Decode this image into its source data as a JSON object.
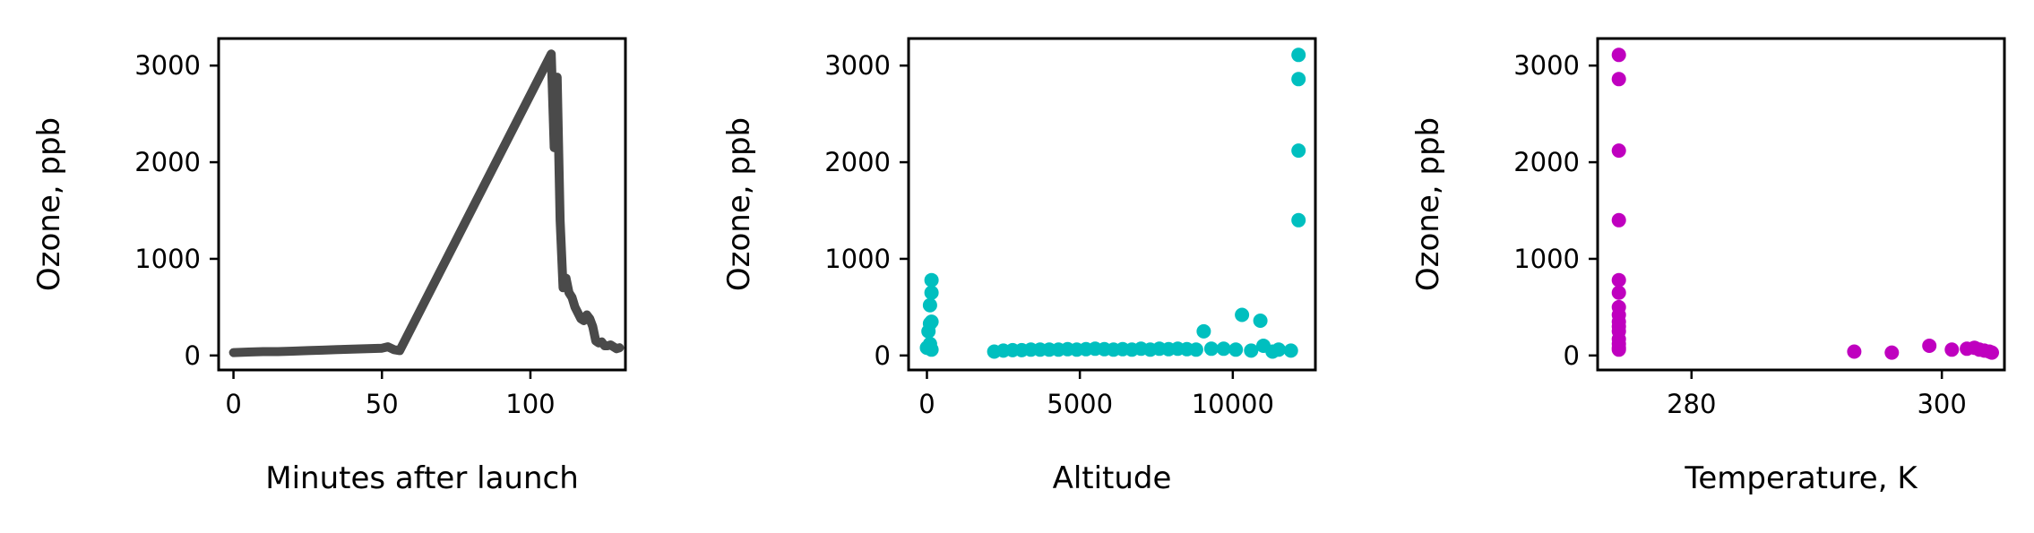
{
  "chart_data": [
    {
      "type": "line",
      "xlabel": "Minutes after launch",
      "ylabel": "Ozone, ppb",
      "xlim": [
        -5,
        132
      ],
      "ylim": [
        -150,
        3280
      ],
      "xticks": [
        0,
        50,
        100
      ],
      "yticks": [
        0,
        1000,
        2000,
        3000
      ],
      "color": "#4a4a4a",
      "grid": false,
      "series": [
        {
          "x": [
            0,
            5,
            10,
            15,
            20,
            25,
            30,
            35,
            40,
            45,
            50,
            52,
            54,
            56,
            107,
            108,
            109,
            110,
            111,
            112,
            113,
            114,
            115,
            117,
            118,
            119,
            120,
            121,
            122,
            123,
            124,
            125,
            126,
            127,
            128,
            129,
            130
          ],
          "y": [
            30,
            35,
            40,
            40,
            45,
            50,
            55,
            60,
            65,
            70,
            75,
            90,
            60,
            50,
            3120,
            2150,
            2880,
            1400,
            700,
            800,
            650,
            600,
            500,
            380,
            360,
            420,
            380,
            300,
            150,
            130,
            140,
            100,
            100,
            110,
            90,
            70,
            80
          ]
        }
      ]
    },
    {
      "type": "scatter",
      "xlabel": "Altitude",
      "ylabel": "Ozone, ppb",
      "xlim": [
        -600,
        12700
      ],
      "ylim": [
        -150,
        3280
      ],
      "xticks": [
        0,
        5000,
        10000
      ],
      "yticks": [
        0,
        1000,
        2000,
        3000
      ],
      "color": "#00bfbf",
      "grid": false,
      "series": [
        {
          "x": [
            0,
            50,
            100,
            100,
            100,
            150,
            150,
            150,
            150,
            2200,
            2500,
            2800,
            3100,
            3400,
            3700,
            4000,
            4300,
            4600,
            4900,
            5200,
            5500,
            5800,
            6100,
            6400,
            6700,
            7000,
            7300,
            7600,
            7900,
            8200,
            8500,
            8800,
            9050,
            9300,
            9700,
            10100,
            10300,
            10600,
            10900,
            11000,
            11300,
            11500,
            11900,
            12150,
            12150,
            12150,
            12150
          ],
          "y": [
            80,
            250,
            120,
            330,
            520,
            650,
            780,
            350,
            60,
            40,
            50,
            55,
            55,
            60,
            60,
            60,
            60,
            65,
            60,
            65,
            70,
            65,
            60,
            65,
            60,
            70,
            60,
            70,
            65,
            70,
            65,
            60,
            250,
            70,
            70,
            60,
            420,
            50,
            360,
            100,
            40,
            60,
            50,
            1400,
            2120,
            2860,
            3110
          ]
        }
      ]
    },
    {
      "type": "scatter",
      "xlabel": "Temperature, K",
      "ylabel": "Ozone, ppb",
      "xlim": [
        272.5,
        305
      ],
      "ylim": [
        -150,
        3280
      ],
      "xticks": [
        280,
        300
      ],
      "yticks": [
        0,
        1000,
        2000,
        3000
      ],
      "color": "#bf00bf",
      "grid": false,
      "series": [
        {
          "x": [
            274.2,
            274.2,
            274.2,
            274.2,
            274.2,
            274.2,
            274.2,
            274.2,
            274.2,
            274.2,
            274.2,
            274.2,
            274.2,
            274.2,
            274.2,
            293.0,
            296.0,
            299.0,
            300.8,
            302.0,
            302.6,
            303.0,
            303.4,
            303.8,
            304.0
          ],
          "y": [
            3110,
            2860,
            2120,
            1400,
            780,
            650,
            500,
            420,
            350,
            300,
            250,
            170,
            120,
            80,
            60,
            40,
            30,
            100,
            60,
            70,
            80,
            60,
            50,
            40,
            30
          ]
        }
      ]
    }
  ]
}
